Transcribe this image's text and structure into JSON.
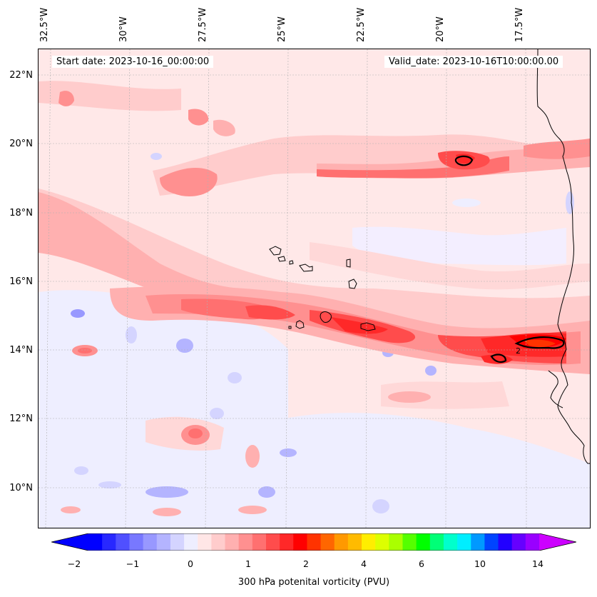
{
  "header": {
    "start_date": "Start date: 2023-10-16_00:00:00",
    "valid_date": "Valid_date: 2023-10-16T10:00:00.00"
  },
  "lon_labels": [
    "32.5°W",
    "30°W",
    "27.5°W",
    "25°W",
    "22.5°W",
    "20°W",
    "17.5°W"
  ],
  "lat_labels": [
    "22°N",
    "20°N",
    "18°N",
    "16°N",
    "14°N",
    "12°N",
    "10°N"
  ],
  "colorbar": {
    "label": "300 hPa potenital vorticity (PVU)",
    "tick_labels": [
      "−2",
      "−1",
      "0",
      "1",
      "2",
      "4",
      "6",
      "10",
      "14"
    ],
    "colors": [
      "#0000ff",
      "#2828ff",
      "#5050ff",
      "#7878ff",
      "#9898ff",
      "#b4b4ff",
      "#d4d4ff",
      "#eeeeff",
      "#ffe6e6",
      "#ffcccc",
      "#ffb0b0",
      "#ff9090",
      "#ff7070",
      "#ff4c4c",
      "#ff2828",
      "#ff0000",
      "#ff3300",
      "#ff6600",
      "#ff9900",
      "#ffbb00",
      "#ffee00",
      "#ddff00",
      "#aaff00",
      "#55ff00",
      "#00ff00",
      "#00ff77",
      "#00ffcc",
      "#00eeff",
      "#0099ff",
      "#0044ff",
      "#2200ff",
      "#6600ff",
      "#9900ff"
    ],
    "extend_low_color": "#0000ff",
    "extend_high_color": "#cc00ff"
  }
}
